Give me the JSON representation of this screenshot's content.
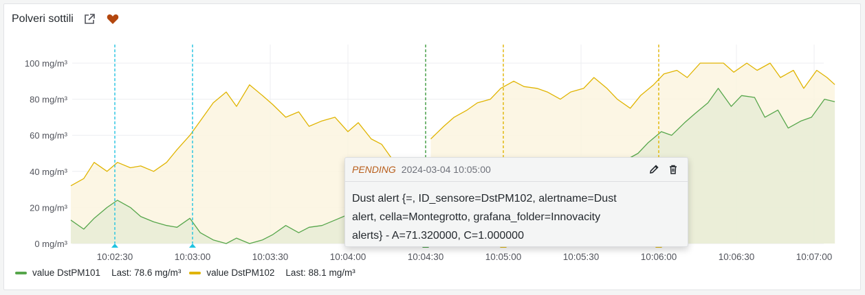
{
  "panel": {
    "title": "Polveri sottili",
    "icons": [
      "external-link-icon",
      "heart-icon"
    ]
  },
  "colors": {
    "series1": "#56a64b",
    "series2": "#e0b400",
    "fill1": "#e8ecd6",
    "fill2": "#fbf4df",
    "annotation_cyan": "#1fc3e0",
    "annotation_green": "#3b9a3b",
    "annotation_yellow": "#e0b400",
    "pending": "#b85d1a"
  },
  "chart_data": {
    "type": "line",
    "x_ticks": [
      "10:02:30",
      "10:03:00",
      "10:03:30",
      "10:04:00",
      "10:04:30",
      "10:05:00",
      "10:05:30",
      "10:06:00",
      "10:06:30",
      "10:07:00"
    ],
    "y_ticks": [
      "0 mg/m³",
      "20 mg/m³",
      "40 mg/m³",
      "60 mg/m³",
      "80 mg/m³",
      "100 mg/m³"
    ],
    "ylim": [
      0,
      100
    ],
    "x_range": [
      "10:02:13",
      "10:07:08"
    ],
    "grid": true,
    "legend_placement": "bottom-left",
    "series": [
      {
        "name": "value DstPM101",
        "color": "#56a64b",
        "points": [
          [
            "10:02:13",
            13
          ],
          [
            "10:02:18",
            8
          ],
          [
            "10:02:22",
            14
          ],
          [
            "10:02:27",
            20
          ],
          [
            "10:02:31",
            24
          ],
          [
            "10:02:36",
            20
          ],
          [
            "10:02:40",
            15
          ],
          [
            "10:02:45",
            12
          ],
          [
            "10:02:50",
            10
          ],
          [
            "10:02:54",
            9
          ],
          [
            "10:02:59",
            14
          ],
          [
            "10:03:03",
            6
          ],
          [
            "10:03:08",
            2
          ],
          [
            "10:03:13",
            0
          ],
          [
            "10:03:17",
            3
          ],
          [
            "10:03:22",
            0
          ],
          [
            "10:03:27",
            2
          ],
          [
            "10:03:31",
            5
          ],
          [
            "10:03:36",
            10
          ],
          [
            "10:03:41",
            6
          ],
          [
            "10:03:45",
            9
          ],
          [
            "10:03:50",
            10
          ],
          [
            "10:03:55",
            13
          ],
          [
            "10:04:00",
            16
          ],
          [
            "10:04:04",
            18
          ],
          [
            "10:04:09",
            20
          ],
          [
            "10:04:13",
            22
          ],
          [
            "10:04:18",
            24
          ]
        ],
        "points_b": [
          [
            "10:05:47",
            46
          ],
          [
            "10:05:52",
            50
          ],
          [
            "10:05:56",
            56
          ],
          [
            "10:06:01",
            62
          ],
          [
            "10:06:05",
            60
          ],
          [
            "10:06:10",
            67
          ],
          [
            "10:06:14",
            72
          ],
          [
            "10:06:19",
            78
          ],
          [
            "10:06:23",
            86
          ],
          [
            "10:06:28",
            76
          ],
          [
            "10:06:32",
            82
          ],
          [
            "10:06:37",
            81
          ],
          [
            "10:06:41",
            70
          ],
          [
            "10:06:46",
            74
          ],
          [
            "10:06:50",
            64
          ],
          [
            "10:06:55",
            68
          ],
          [
            "10:06:59",
            70
          ],
          [
            "10:07:04",
            80
          ],
          [
            "10:07:08",
            78.6
          ]
        ],
        "last": "Last: 78.6 mg/m³"
      },
      {
        "name": "value DstPM102",
        "color": "#e0b400",
        "points": [
          [
            "10:02:13",
            32
          ],
          [
            "10:02:18",
            36
          ],
          [
            "10:02:22",
            45
          ],
          [
            "10:02:27",
            40
          ],
          [
            "10:02:31",
            45
          ],
          [
            "10:02:36",
            42
          ],
          [
            "10:02:40",
            43
          ],
          [
            "10:02:45",
            40
          ],
          [
            "10:02:50",
            45
          ],
          [
            "10:02:54",
            52
          ],
          [
            "10:02:59",
            60
          ],
          [
            "10:03:03",
            68
          ],
          [
            "10:03:08",
            78
          ],
          [
            "10:03:13",
            84
          ],
          [
            "10:03:17",
            76
          ],
          [
            "10:03:22",
            88
          ],
          [
            "10:03:27",
            82
          ],
          [
            "10:03:31",
            77
          ],
          [
            "10:03:36",
            70
          ],
          [
            "10:03:41",
            73
          ],
          [
            "10:03:45",
            65
          ],
          [
            "10:03:50",
            68
          ],
          [
            "10:03:55",
            70
          ],
          [
            "10:04:00",
            62
          ],
          [
            "10:04:04",
            67
          ],
          [
            "10:04:09",
            58
          ],
          [
            "10:04:13",
            55
          ],
          [
            "10:04:18",
            45
          ]
        ],
        "points_b": [
          [
            "10:04:32",
            58
          ],
          [
            "10:04:37",
            65
          ],
          [
            "10:04:41",
            70
          ],
          [
            "10:04:46",
            74
          ],
          [
            "10:04:50",
            78
          ],
          [
            "10:04:55",
            80
          ],
          [
            "10:04:59",
            86
          ],
          [
            "10:05:04",
            90
          ],
          [
            "10:05:08",
            87
          ],
          [
            "10:05:13",
            86
          ],
          [
            "10:05:17",
            84
          ],
          [
            "10:05:22",
            80
          ],
          [
            "10:05:26",
            84
          ],
          [
            "10:05:31",
            86
          ],
          [
            "10:05:35",
            92
          ],
          [
            "10:05:40",
            86
          ],
          [
            "10:05:44",
            80
          ],
          [
            "10:05:49",
            75
          ],
          [
            "10:05:53",
            82
          ],
          [
            "10:05:58",
            88
          ],
          [
            "10:06:02",
            94
          ],
          [
            "10:06:07",
            96
          ],
          [
            "10:06:11",
            92
          ],
          [
            "10:06:16",
            100
          ],
          [
            "10:06:20",
            100
          ],
          [
            "10:06:25",
            100
          ],
          [
            "10:06:29",
            95
          ],
          [
            "10:06:34",
            100
          ],
          [
            "10:06:38",
            96
          ],
          [
            "10:06:43",
            100
          ],
          [
            "10:06:47",
            92
          ],
          [
            "10:06:52",
            96
          ],
          [
            "10:06:56",
            86
          ],
          [
            "10:07:01",
            96
          ],
          [
            "10:07:05",
            92
          ],
          [
            "10:07:08",
            88.1
          ]
        ],
        "last": "Last: 88.1 mg/m³"
      }
    ],
    "annotations": [
      {
        "time": "10:02:30",
        "color": "#1fc3e0"
      },
      {
        "time": "10:03:00",
        "color": "#1fc3e0"
      },
      {
        "time": "10:04:30",
        "color": "#3b9a3b"
      },
      {
        "time": "10:05:00",
        "color": "#e0b400"
      },
      {
        "time": "10:06:00",
        "color": "#e0b400"
      }
    ]
  },
  "legend": {
    "items": [
      {
        "name": "value DstPM101",
        "last": "Last: 78.6 mg/m³"
      },
      {
        "name": "value DstPM102",
        "last": "Last: 88.1 mg/m³"
      }
    ]
  },
  "tooltip": {
    "state": "PENDING",
    "time": "2024-03-04 10:05:00",
    "lines": [
      "Dust alert {=, ID_sensore=DstPM102, alertname=Dust",
      "alert, cella=Montegrotto, grafana_folder=Innovacity",
      "alerts} - A=71.320000, C=1.000000"
    ]
  }
}
